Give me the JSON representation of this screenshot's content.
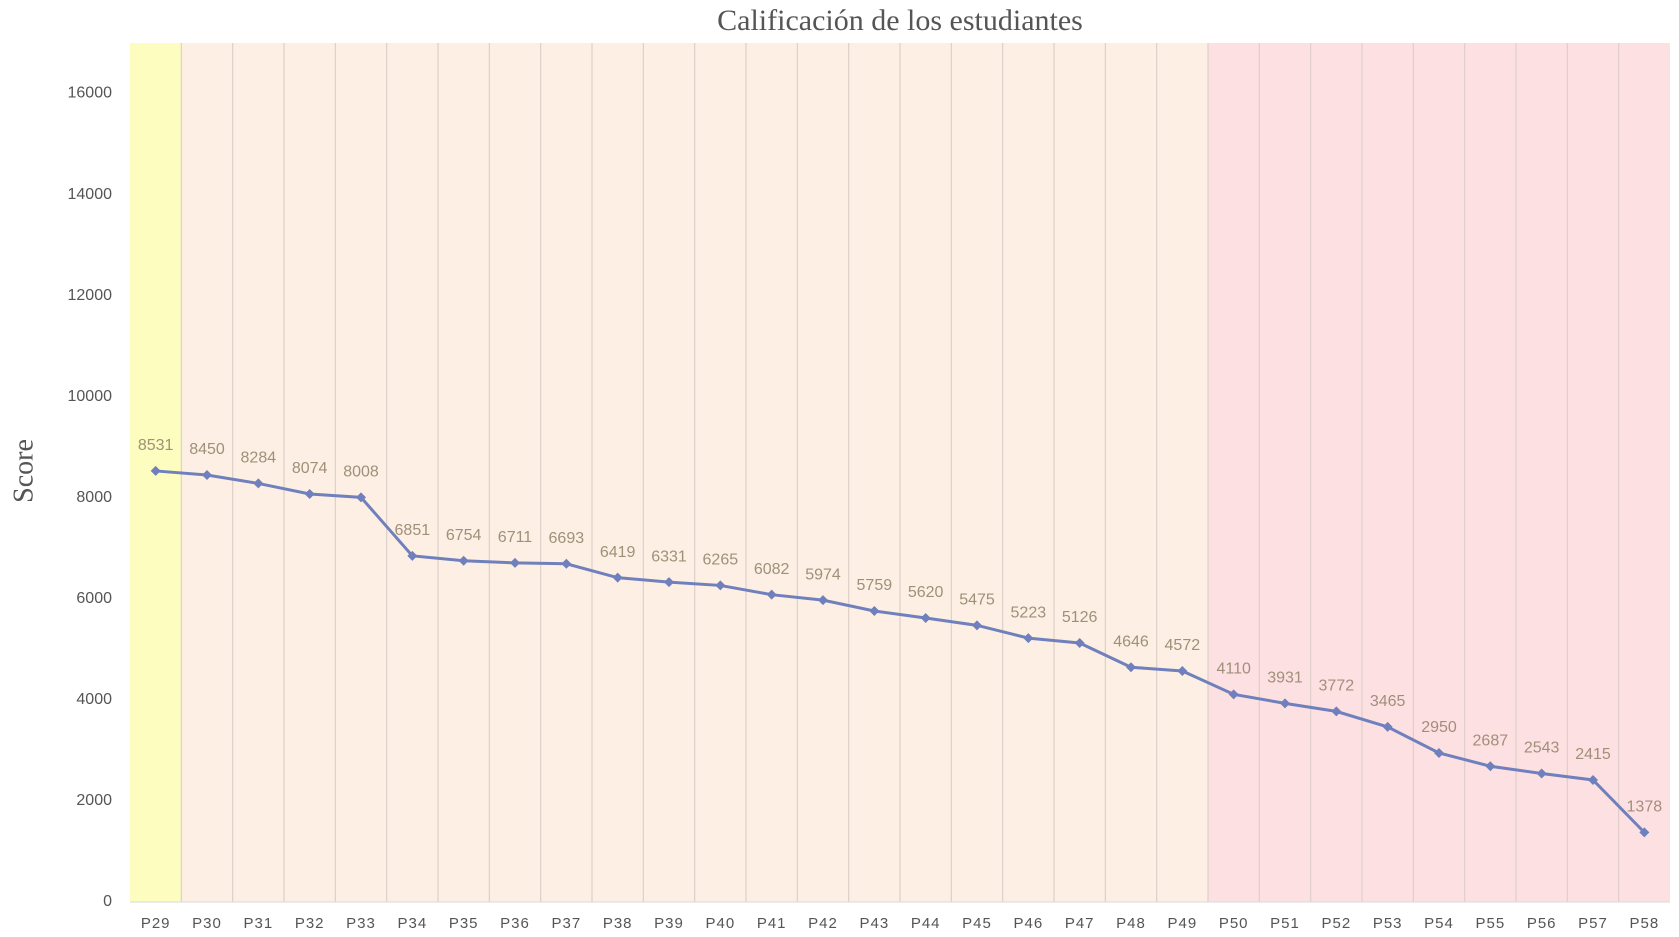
{
  "chart_data": {
    "type": "line",
    "title": "Calificación de los estudiantes",
    "y_label": "Score",
    "categories": [
      "P29",
      "P30",
      "P31",
      "P32",
      "P33",
      "P34",
      "P35",
      "P36",
      "P37",
      "P38",
      "P39",
      "P40",
      "P41",
      "P42",
      "P43",
      "P44",
      "P45",
      "P46",
      "P47",
      "P48",
      "P49",
      "P50",
      "P51",
      "P52",
      "P53",
      "P54",
      "P55",
      "P56",
      "P57",
      "P58"
    ],
    "series": [
      {
        "name": "Score",
        "color": "#6f80bd",
        "values": [
          8531,
          8450,
          8284,
          8074,
          8008,
          6851,
          6754,
          6711,
          6693,
          6419,
          6331,
          6265,
          6082,
          5974,
          5759,
          5620,
          5475,
          5223,
          5126,
          4646,
          4572,
          4110,
          3931,
          3772,
          3465,
          2950,
          2687,
          2543,
          2415,
          1378
        ]
      }
    ],
    "ylim": [
      0,
      17000
    ],
    "yticks": [
      0,
      2000,
      4000,
      6000,
      8000,
      10000,
      12000,
      14000,
      16000
    ],
    "bands": [
      {
        "from": "P29",
        "to": "P29",
        "color": "#fdfdc0"
      },
      {
        "from": "P30",
        "to": "P49",
        "color": "#fdefe3"
      },
      {
        "from": "P50",
        "to": "P58",
        "color": "#fde0e2"
      }
    ],
    "data_labels": true
  }
}
